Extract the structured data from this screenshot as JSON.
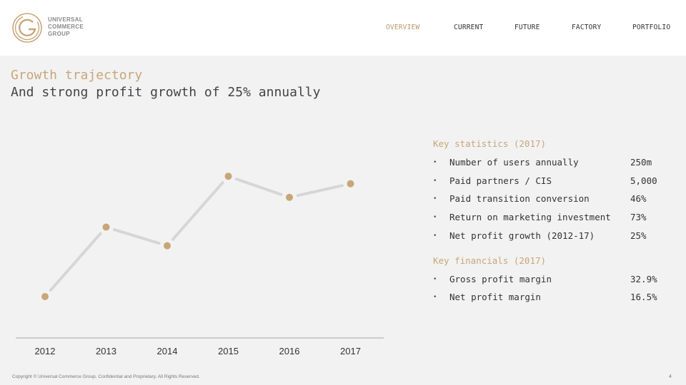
{
  "header": {
    "logo_text": [
      "UNIVERSAL",
      "COMMERCE",
      "GROUP"
    ],
    "nav": [
      {
        "label": "OVERVIEW",
        "active": true
      },
      {
        "label": "CURRENT",
        "active": false
      },
      {
        "label": "FUTURE",
        "active": false
      },
      {
        "label": "FACTORY",
        "active": false
      },
      {
        "label": "PORTFOLIO",
        "active": false
      }
    ]
  },
  "slide": {
    "title": "Growth trajectory",
    "subtitle": "And strong profit growth of 25% annually"
  },
  "key_statistics": {
    "heading": "Key statistics (2017)",
    "bullet": "•",
    "items": [
      {
        "label": "Number of users annually",
        "value": "250m"
      },
      {
        "label": "Paid partners / CIS",
        "value": "5,000"
      },
      {
        "label": "Paid transition conversion",
        "value": "46%"
      },
      {
        "label": "Return on marketing investment",
        "value": "73%"
      },
      {
        "label": "Net profit growth (2012-17)",
        "value": "25%"
      }
    ]
  },
  "key_financials": {
    "heading": "Key financials (2017)",
    "bullet": "•",
    "items": [
      {
        "label": "Gross profit margin",
        "value": "32.9%"
      },
      {
        "label": "Net profit margin",
        "value": "16.5%"
      }
    ]
  },
  "chart_data": {
    "type": "line",
    "x": [
      "2012",
      "2013",
      "2014",
      "2015",
      "2016",
      "2017"
    ],
    "values": [
      0.0,
      0.56,
      0.41,
      0.97,
      0.8,
      0.91
    ],
    "ylim": [
      0,
      1
    ],
    "grid": false,
    "colors": {
      "line": "#d6d6d6",
      "point": "#c8a67a",
      "axis": "#cccccc"
    }
  },
  "footer": {
    "copyright": "Copyright © Universal Commerce Group. Confidential and Proprietary. All Rights Reserved.",
    "page": "4"
  }
}
